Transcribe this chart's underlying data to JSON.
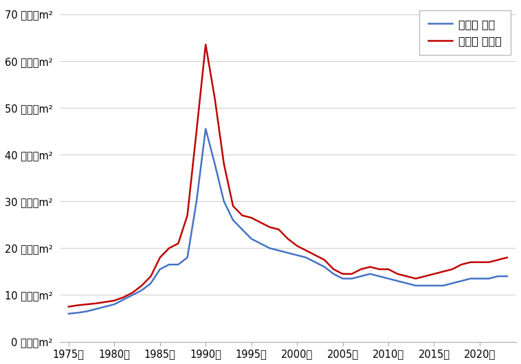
{
  "years": [
    1975,
    1976,
    1977,
    1978,
    1979,
    1980,
    1981,
    1982,
    1983,
    1984,
    1985,
    1986,
    1987,
    1988,
    1989,
    1990,
    1991,
    1992,
    1993,
    1994,
    1995,
    1996,
    1997,
    1998,
    1999,
    2000,
    2001,
    2002,
    2003,
    2004,
    2005,
    2006,
    2007,
    2008,
    2009,
    2010,
    2011,
    2012,
    2013,
    2014,
    2015,
    2016,
    2017,
    2018,
    2019,
    2020,
    2021,
    2022,
    2023
  ],
  "jutaku": [
    6.0,
    6.2,
    6.5,
    7.0,
    7.5,
    8.0,
    9.0,
    10.0,
    11.0,
    12.5,
    15.5,
    16.5,
    16.5,
    18.0,
    30.0,
    45.5,
    38.0,
    30.0,
    26.0,
    24.0,
    22.0,
    21.0,
    20.0,
    19.5,
    19.0,
    18.5,
    18.0,
    17.0,
    16.0,
    14.5,
    13.5,
    13.5,
    14.0,
    14.5,
    14.0,
    13.5,
    13.0,
    12.5,
    12.0,
    12.0,
    12.0,
    12.0,
    12.5,
    13.0,
    13.5,
    13.5,
    13.5,
    14.0,
    14.0
  ],
  "zenyo": [
    7.5,
    7.8,
    8.0,
    8.2,
    8.5,
    8.8,
    9.5,
    10.5,
    12.0,
    14.0,
    18.0,
    20.0,
    21.0,
    27.0,
    45.0,
    63.5,
    52.0,
    38.0,
    29.0,
    27.0,
    26.5,
    25.5,
    24.5,
    24.0,
    22.0,
    20.5,
    19.5,
    18.5,
    17.5,
    15.5,
    14.5,
    14.5,
    15.5,
    16.0,
    15.5,
    15.5,
    14.5,
    14.0,
    13.5,
    14.0,
    14.5,
    15.0,
    15.5,
    16.5,
    17.0,
    17.0,
    17.0,
    17.5,
    18.0
  ],
  "jutaku_color": "#4472C4",
  "zenyo_color": "#C00000",
  "jutaku_label": "兵庫県 住宅",
  "zenyo_label": "兵庫県 全用途",
  "ytick_values": [
    0,
    10,
    20,
    30,
    40,
    50,
    60,
    70
  ],
  "ytick_labels": [
    "0 万円／m²",
    "10 万円／m²",
    "20 万円／m²",
    "30 万円／m²",
    "40 万円／m²",
    "50 万円／m²",
    "60 万円／m²",
    "70 万円／m²"
  ],
  "xtick_years": [
    1975,
    1980,
    1985,
    1990,
    1995,
    2000,
    2005,
    2010,
    2015,
    2020
  ],
  "ylim": [
    0,
    72
  ],
  "xlim": [
    1974,
    2024
  ],
  "background_color": "#ffffff",
  "line_width": 1.8,
  "grid_color": "#d0d0d0",
  "tick_fontsize": 10.5,
  "legend_fontsize": 11.5
}
